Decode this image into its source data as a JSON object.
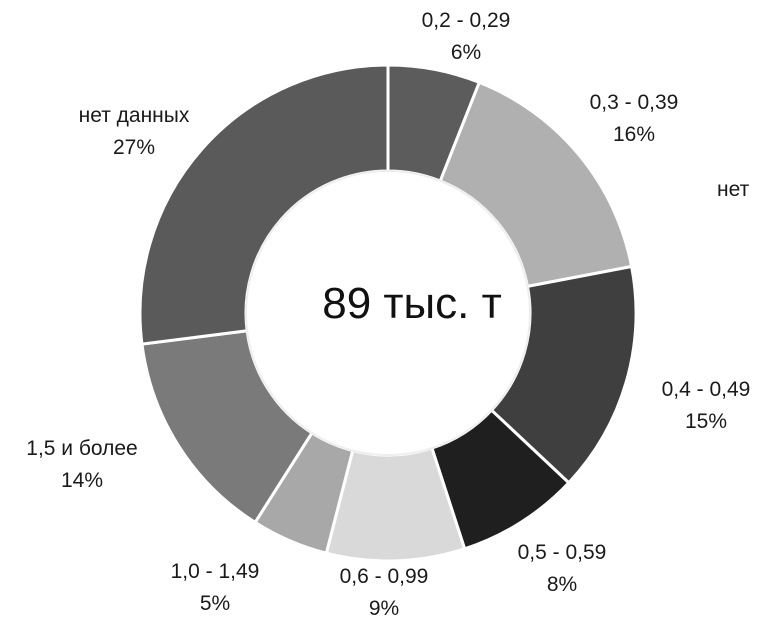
{
  "chart_data": {
    "type": "pie",
    "subtype": "donut",
    "center_text": "89 тыс. т",
    "slices": [
      {
        "name": "0,2 - 0,29",
        "value": 6,
        "value_label": "6%",
        "color": "#5c5c5c"
      },
      {
        "name": "0,3 - 0,39",
        "value": 16,
        "value_label": "16%",
        "color": "#b0b0b0"
      },
      {
        "name": "0,4 - 0,49",
        "value": 15,
        "value_label": "15%",
        "color": "#3f3f3f"
      },
      {
        "name": "0,5 - 0,59",
        "value": 8,
        "value_label": "8%",
        "color": "#1f1f1f"
      },
      {
        "name": "0,6 - 0,99",
        "value": 9,
        "value_label": "9%",
        "color": "#d9d9d9"
      },
      {
        "name": "1,0 - 1,49",
        "value": 5,
        "value_label": "5%",
        "color": "#a8a8a8"
      },
      {
        "name": "1,5 и более",
        "value": 14,
        "value_label": "14%",
        "color": "#7a7a7a"
      },
      {
        "name": "нет данных",
        "value": 27,
        "value_label": "27%",
        "color": "#5a5a5a"
      }
    ],
    "legend": "none",
    "cropped_label": "нет"
  }
}
